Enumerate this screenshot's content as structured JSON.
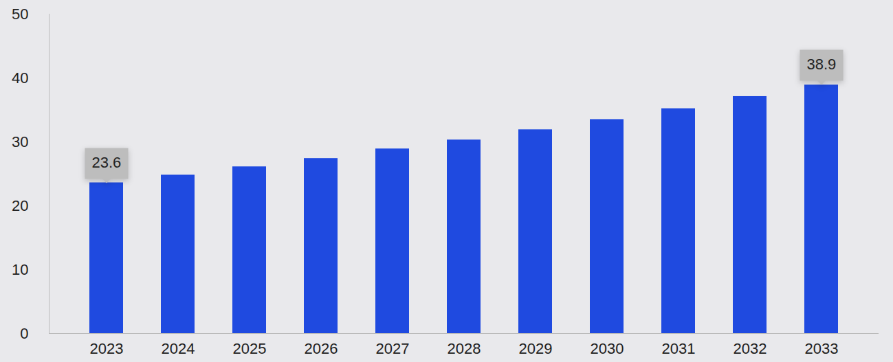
{
  "chart_data": {
    "type": "bar",
    "categories": [
      "2023",
      "2024",
      "2025",
      "2026",
      "2027",
      "2028",
      "2029",
      "2030",
      "2031",
      "2032",
      "2033"
    ],
    "values": [
      23.6,
      24.8,
      26.1,
      27.4,
      28.9,
      30.3,
      31.9,
      33.5,
      35.2,
      37.1,
      38.9
    ],
    "value_labels": [
      "23.6",
      null,
      null,
      null,
      null,
      null,
      null,
      null,
      null,
      null,
      "38.9"
    ],
    "data_labels": true,
    "color": "#1f4ae0",
    "ylim": [
      0,
      50
    ],
    "yticks": [
      0,
      10,
      20,
      30,
      40,
      50
    ],
    "grid": false
  }
}
